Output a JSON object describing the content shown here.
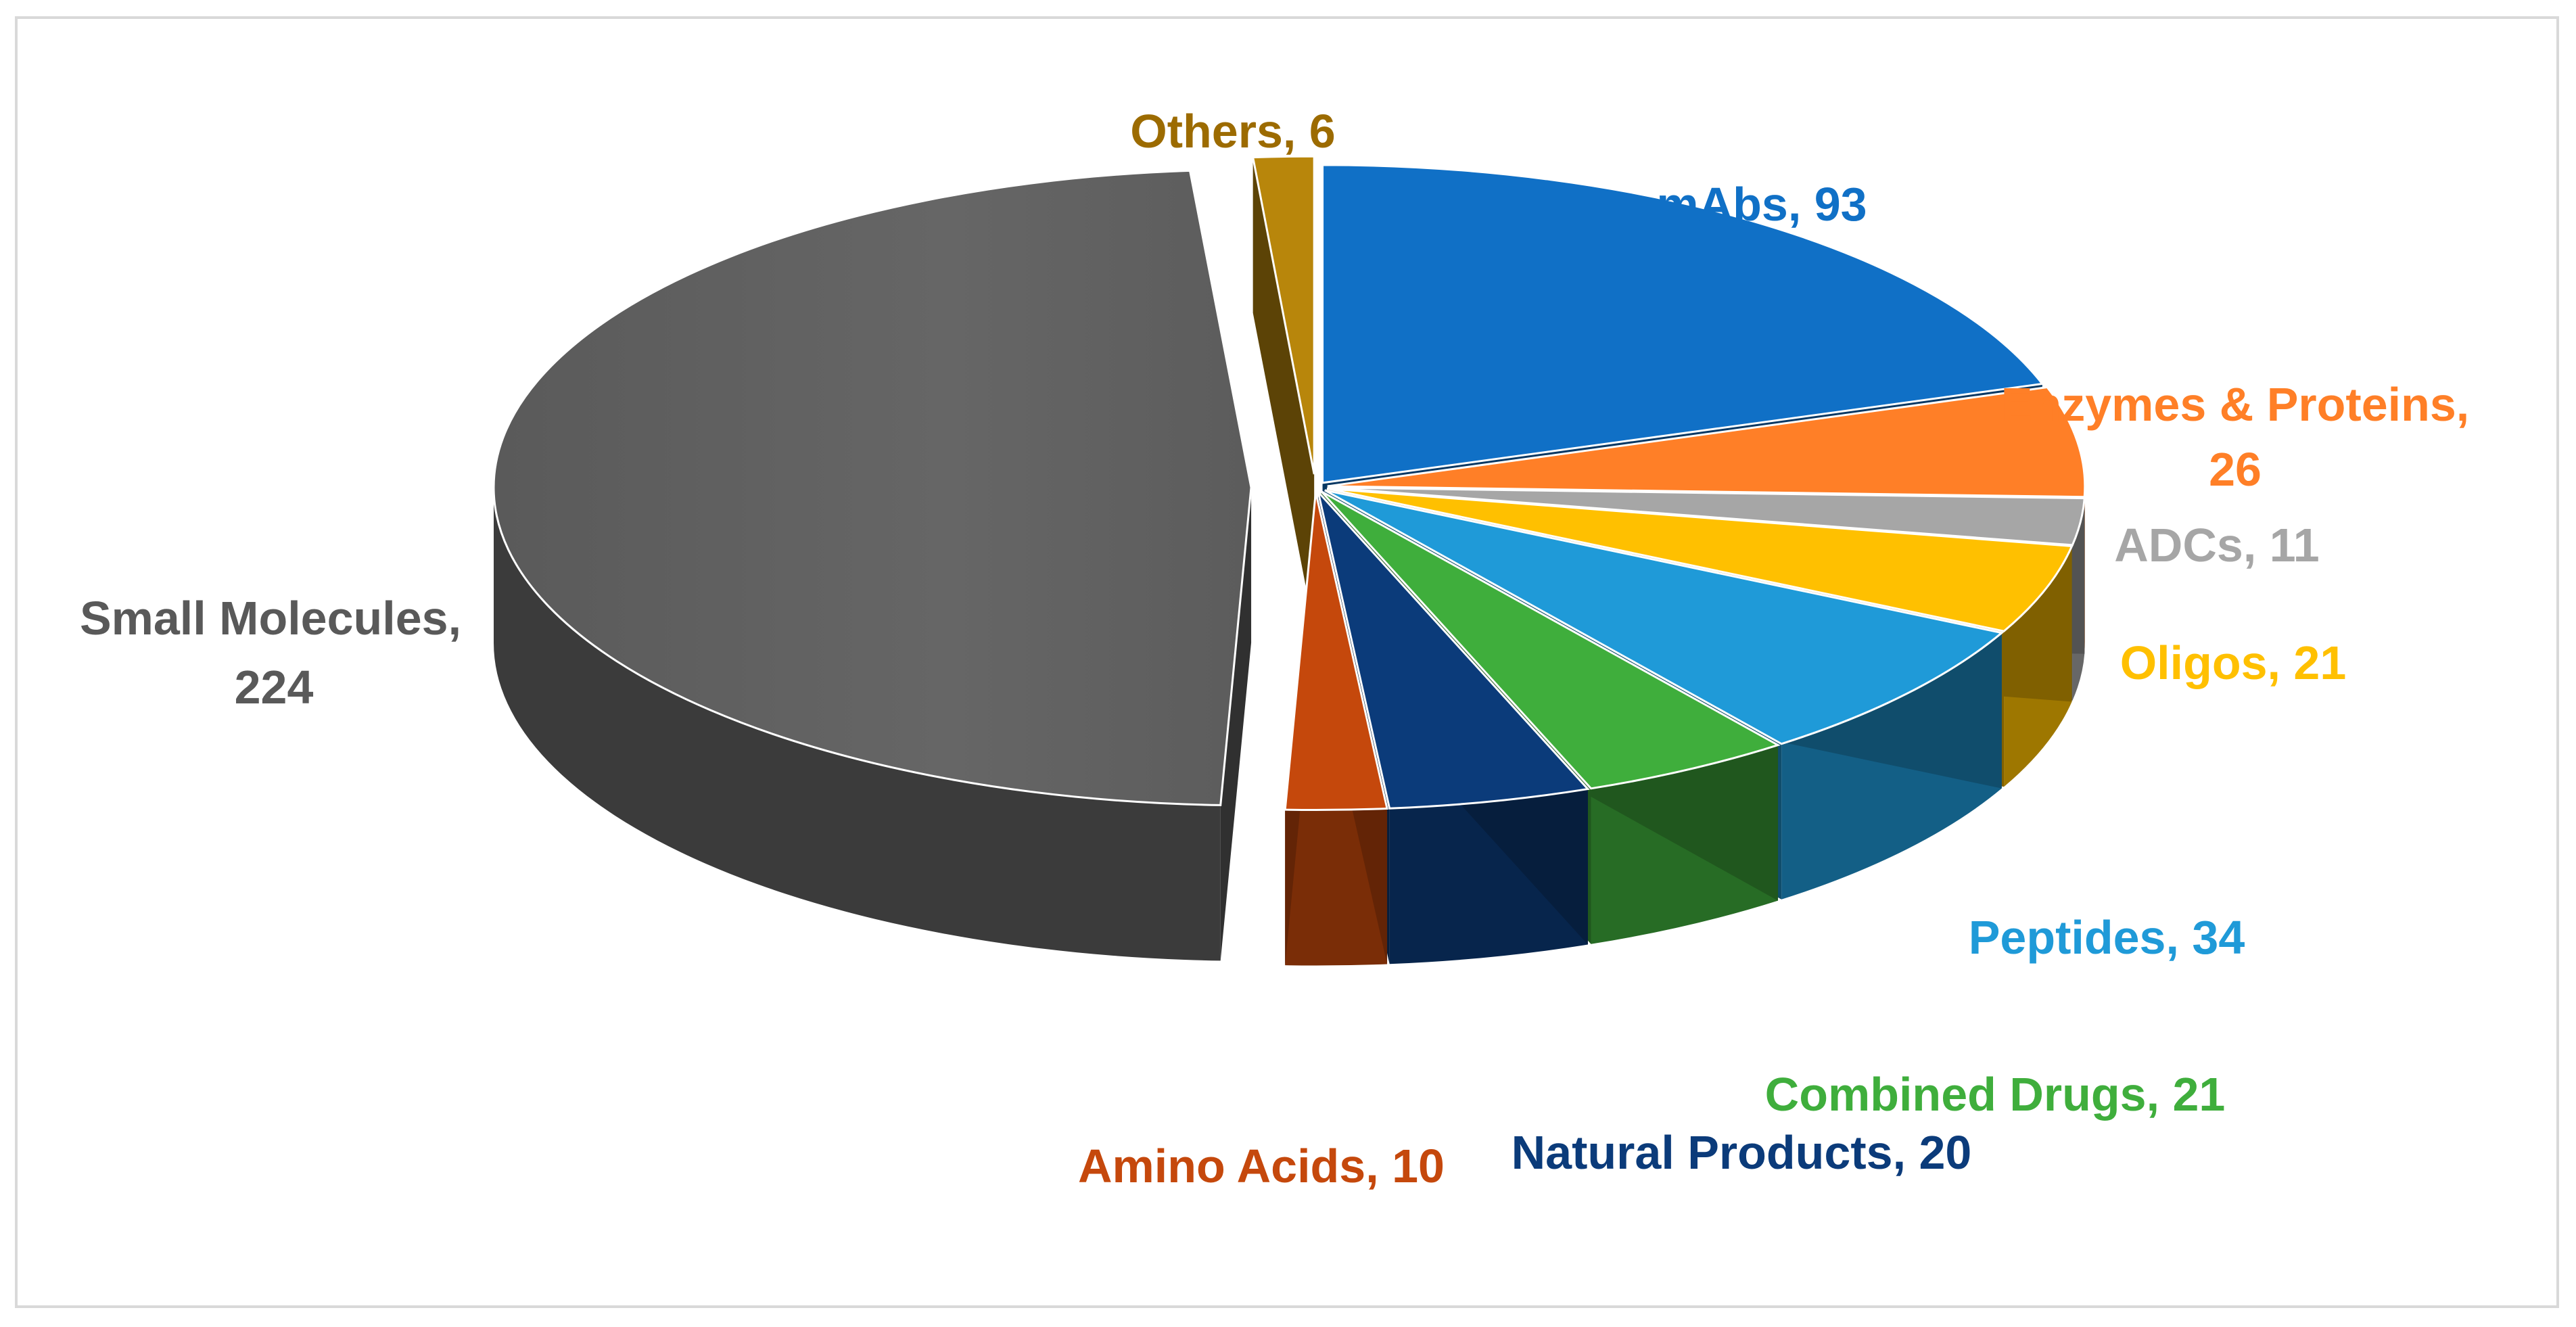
{
  "chart_data": {
    "type": "pie",
    "title": "",
    "variant": "3d-exploded",
    "slices": [
      {
        "name": "mAbs",
        "value": 93,
        "label": "mAbs, 93",
        "color": "#1070c6"
      },
      {
        "name": "Enzymes & Proteins",
        "value": 26,
        "label_lines": [
          "Enzymes & Proteins,",
          "26"
        ],
        "color": "#ff7f27"
      },
      {
        "name": "ADCs",
        "value": 11,
        "label": "ADCs, 11",
        "color": "#a6a6a6"
      },
      {
        "name": "Oligos",
        "value": 21,
        "label": "Oligos, 21",
        "color": "#ffc000"
      },
      {
        "name": "Peptides",
        "value": 34,
        "label": "Peptides, 34",
        "color": "#1f9ad8"
      },
      {
        "name": "Combined Drugs",
        "value": 21,
        "label": "Combined Drugs, 21",
        "color": "#3fae3c"
      },
      {
        "name": "Natural Products",
        "value": 20,
        "label": "Natural Products, 20",
        "color": "#0b3b7a"
      },
      {
        "name": "Amino Acids",
        "value": 10,
        "label": "Amino Acids, 10",
        "color": "#c5480c"
      },
      {
        "name": "Small Molecules",
        "value": 224,
        "label_lines": [
          "Small Molecules,",
          "224"
        ],
        "color": "#5f5f5f"
      },
      {
        "name": "Others",
        "value": 6,
        "label": "Others, 6",
        "color": "#b8860b"
      }
    ],
    "label_colors": {
      "mAbs": "#1070c6",
      "Enzymes & Proteins": "#ff7f27",
      "ADCs": "#a6a6a6",
      "Oligos": "#ffc000",
      "Peptides": "#1f9ad8",
      "Combined Drugs": "#3fae3c",
      "Natural Products": "#0b3b7a",
      "Amino Acids": "#c5480c",
      "Small Molecules": "#595959",
      "Others": "#9c6b00"
    }
  }
}
